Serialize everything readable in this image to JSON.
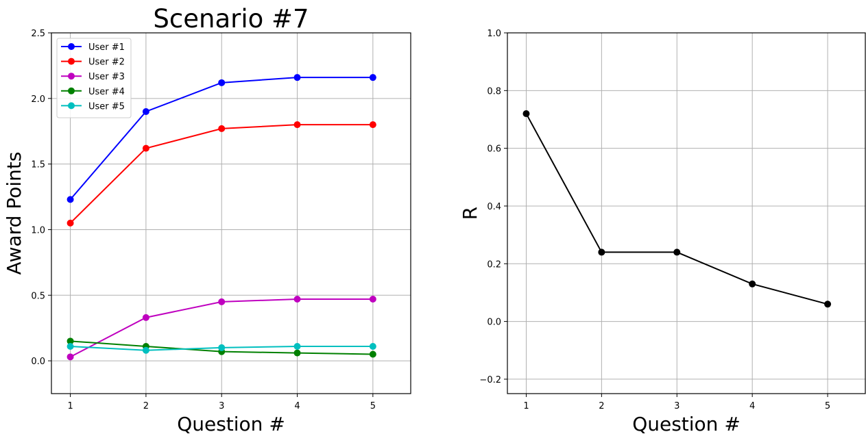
{
  "chart_data": [
    {
      "type": "line",
      "title": "Scenario #7",
      "xlabel": "Question #",
      "ylabel": "Award Points",
      "x": [
        1,
        2,
        3,
        4,
        5
      ],
      "xlim": [
        0.75,
        5.5
      ],
      "ylim": [
        -0.25,
        2.5
      ],
      "xticks": [
        1,
        2,
        3,
        4,
        5
      ],
      "yticks": [
        0.0,
        0.5,
        1.0,
        1.5,
        2.0,
        2.5
      ],
      "ytick_labels": [
        "0.0",
        "0.5",
        "1.0",
        "1.5",
        "2.0",
        "2.5"
      ],
      "grid": true,
      "legend_position": "top-left",
      "series": [
        {
          "name": "User #1",
          "color": "#0000ff",
          "values": [
            1.23,
            1.9,
            2.12,
            2.16,
            2.16
          ]
        },
        {
          "name": "User #2",
          "color": "#ff0000",
          "values": [
            1.05,
            1.62,
            1.77,
            1.8,
            1.8
          ]
        },
        {
          "name": "User #3",
          "color": "#bf00bf",
          "values": [
            0.03,
            0.33,
            0.45,
            0.47,
            0.47
          ]
        },
        {
          "name": "User #4",
          "color": "#008000",
          "values": [
            0.15,
            0.11,
            0.07,
            0.06,
            0.05
          ]
        },
        {
          "name": "User #5",
          "color": "#00bfbf",
          "values": [
            0.11,
            0.08,
            0.1,
            0.11,
            0.11
          ]
        }
      ]
    },
    {
      "type": "line",
      "title": "",
      "xlabel": "Question #",
      "ylabel": "R",
      "x": [
        1,
        2,
        3,
        4,
        5
      ],
      "xlim": [
        0.75,
        5.5
      ],
      "ylim": [
        -0.25,
        1.0
      ],
      "xticks": [
        1,
        2,
        3,
        4,
        5
      ],
      "yticks": [
        -0.2,
        0.0,
        0.2,
        0.4,
        0.6,
        0.8,
        1.0
      ],
      "ytick_labels": [
        "−0.2",
        "0.0",
        "0.2",
        "0.4",
        "0.6",
        "0.8",
        "1.0"
      ],
      "grid": true,
      "series": [
        {
          "color": "#000000",
          "values": [
            0.72,
            0.24,
            0.24,
            0.13,
            0.06
          ]
        }
      ]
    }
  ]
}
